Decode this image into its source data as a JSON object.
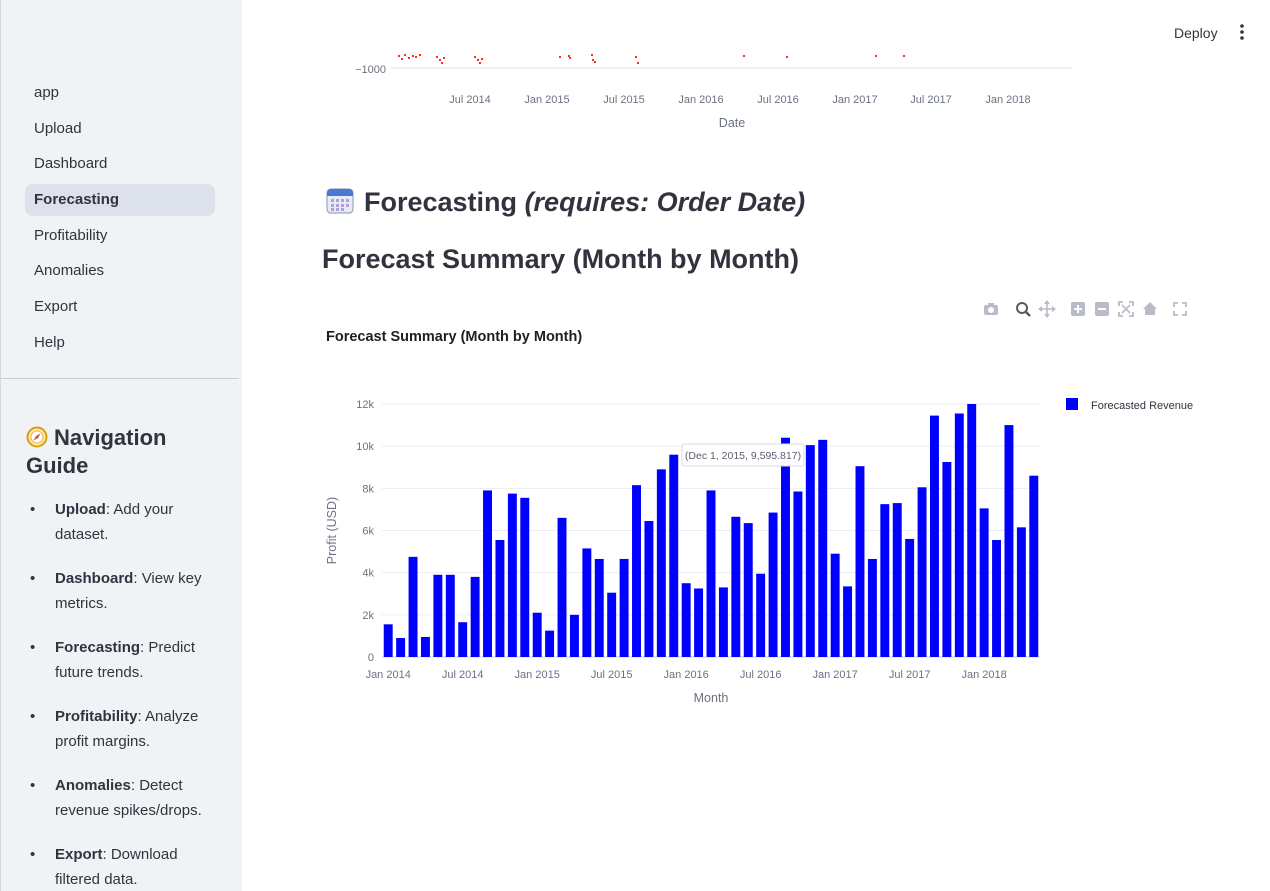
{
  "sidebar": {
    "items": [
      {
        "label": "app",
        "active": false
      },
      {
        "label": "Upload",
        "active": false
      },
      {
        "label": "Dashboard",
        "active": false
      },
      {
        "label": "Forecasting",
        "active": true
      },
      {
        "label": "Profitability",
        "active": false
      },
      {
        "label": "Anomalies",
        "active": false
      },
      {
        "label": "Export",
        "active": false
      },
      {
        "label": "Help",
        "active": false
      }
    ],
    "guide_title": "Navigation Guide",
    "guide_icon": "compass-icon",
    "guide": [
      {
        "term": "Upload",
        "desc": ": Add your dataset."
      },
      {
        "term": "Dashboard",
        "desc": ": View key metrics."
      },
      {
        "term": "Forecasting",
        "desc": ": Predict future trends."
      },
      {
        "term": "Profitability",
        "desc": ": Analyze profit margins."
      },
      {
        "term": "Anomalies",
        "desc": ": Detect revenue spikes/drops."
      },
      {
        "term": "Export",
        "desc": ": Download filtered data."
      }
    ]
  },
  "header": {
    "deploy_label": "Deploy",
    "menu_icon": "more-vertical-icon"
  },
  "top_chart": {
    "ytick": "−1000",
    "xticks": [
      "Jul 2014",
      "Jan 2015",
      "Jul 2015",
      "Jan 2016",
      "Jul 2016",
      "Jan 2017",
      "Jul 2017",
      "Jan 2018"
    ],
    "xlabel": "Date",
    "point_color": "#ff2b2b"
  },
  "forecast_heading": {
    "title": "Forecasting",
    "note": "(requires: Order Date)",
    "icon": "calendar-icon"
  },
  "summary_heading": "Forecast Summary (Month by Month)",
  "modebar": [
    "camera-icon",
    "zoom-icon",
    "pan-icon",
    "zoom-in-icon",
    "zoom-out-icon",
    "autoscale-icon",
    "reset-axes-icon",
    "fullscreen-icon"
  ],
  "chart_data": {
    "type": "bar",
    "title": "Forecast Summary (Month by Month)",
    "xlabel": "Month",
    "ylabel": "Profit (USD)",
    "ylim": [
      0,
      12000
    ],
    "yticks": [
      "0",
      "2k",
      "4k",
      "6k",
      "8k",
      "10k",
      "12k"
    ],
    "xticks": [
      "Jan 2014",
      "Jul 2014",
      "Jan 2015",
      "Jul 2015",
      "Jan 2016",
      "Jul 2016",
      "Jan 2017",
      "Jul 2017",
      "Jan 2018"
    ],
    "grid": true,
    "legend_position": "top-right",
    "color": "#0000ff",
    "series": [
      {
        "name": "Forecasted Revenue",
        "values": [
          1550,
          900,
          4750,
          950,
          3900,
          3900,
          1650,
          3800,
          7900,
          5550,
          7750,
          7550,
          2100,
          1250,
          6600,
          2000,
          5150,
          4650,
          3050,
          4650,
          8150,
          6450,
          8900,
          9595.817,
          3500,
          3250,
          7900,
          3300,
          6650,
          6350,
          3950,
          6850,
          10400,
          7850,
          10050,
          10300,
          4900,
          3350,
          9050,
          4650,
          7250,
          7300,
          5600,
          8050,
          11450,
          9250,
          11550,
          12000,
          7050,
          5550,
          11000,
          6150,
          8600
        ]
      }
    ],
    "tooltip": "(Dec 1, 2015, 9,595.817)"
  }
}
